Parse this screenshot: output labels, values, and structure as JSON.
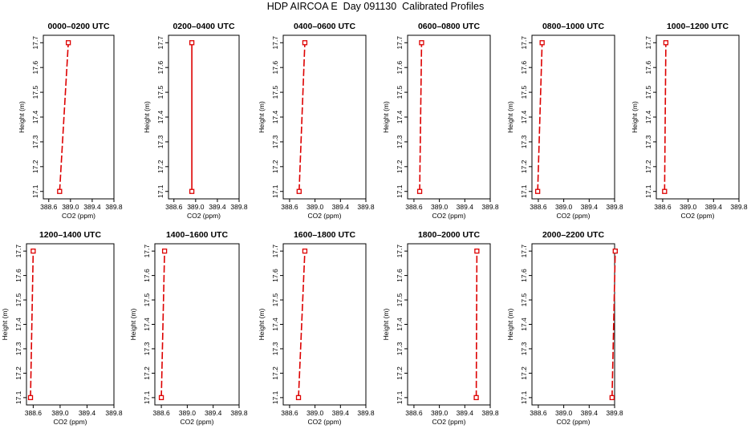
{
  "title": "HDP AIRCOA E  Day 091130  Calibrated Profiles",
  "colors": {
    "profile": "#dd0000",
    "axis": "#000000"
  },
  "chart_data": [
    {
      "type": "line",
      "title": "0000–0200 UTC",
      "xlabel": "CO2 (ppm)",
      "ylabel": "Height (m)",
      "xlim": [
        388.5,
        389.8
      ],
      "ylim": [
        17.07,
        17.73
      ],
      "xticks": [
        "388.6",
        "389.0",
        "389.4",
        "389.8"
      ],
      "yticks": [
        "17.1",
        "17.2",
        "17.3",
        "17.4",
        "17.5",
        "17.6",
        "17.7"
      ],
      "x": [
        388.8,
        388.96
      ],
      "y": [
        17.1,
        17.7
      ],
      "style": "dashed"
    },
    {
      "type": "line",
      "title": "0200–0400 UTC",
      "xlabel": "CO2 (ppm)",
      "ylabel": "Height (m)",
      "xlim": [
        388.5,
        389.8
      ],
      "ylim": [
        17.07,
        17.73
      ],
      "xticks": [
        "388.6",
        "389.0",
        "389.4",
        "389.8"
      ],
      "yticks": [
        "17.1",
        "17.2",
        "17.3",
        "17.4",
        "17.5",
        "17.6",
        "17.7"
      ],
      "x": [
        388.93,
        388.93
      ],
      "y": [
        17.1,
        17.7
      ],
      "style": "solid"
    },
    {
      "type": "line",
      "title": "0400–0600 UTC",
      "xlabel": "CO2 (ppm)",
      "ylabel": "Height (m)",
      "xlim": [
        388.5,
        389.8
      ],
      "ylim": [
        17.07,
        17.73
      ],
      "xticks": [
        "388.6",
        "389.0",
        "389.4",
        "389.8"
      ],
      "yticks": [
        "17.1",
        "17.2",
        "17.3",
        "17.4",
        "17.5",
        "17.6",
        "17.7"
      ],
      "x": [
        388.75,
        388.84
      ],
      "y": [
        17.1,
        17.7
      ],
      "style": "dashed"
    },
    {
      "type": "line",
      "title": "0600–0800 UTC",
      "xlabel": "CO2 (ppm)",
      "ylabel": "Height (m)",
      "xlim": [
        388.5,
        389.8
      ],
      "ylim": [
        17.07,
        17.73
      ],
      "xticks": [
        "388.6",
        "389.0",
        "389.4",
        "389.8"
      ],
      "yticks": [
        "17.1",
        "17.2",
        "17.3",
        "17.4",
        "17.5",
        "17.6",
        "17.7"
      ],
      "x": [
        388.69,
        388.72
      ],
      "y": [
        17.1,
        17.7
      ],
      "style": "dashed"
    },
    {
      "type": "line",
      "title": "0800–1000 UTC",
      "xlabel": "CO2 (ppm)",
      "ylabel": "Height (m)",
      "xlim": [
        388.5,
        389.8
      ],
      "ylim": [
        17.07,
        17.73
      ],
      "xticks": [
        "388.6",
        "389.0",
        "389.4",
        "389.8"
      ],
      "yticks": [
        "17.1",
        "17.2",
        "17.3",
        "17.4",
        "17.5",
        "17.6",
        "17.7"
      ],
      "x": [
        388.59,
        388.66
      ],
      "y": [
        17.1,
        17.7
      ],
      "style": "dashed"
    },
    {
      "type": "line",
      "title": "1000–1200 UTC",
      "xlabel": "CO2 (ppm)",
      "ylabel": "Height (m)",
      "xlim": [
        388.5,
        389.8
      ],
      "ylim": [
        17.07,
        17.73
      ],
      "xticks": [
        "388.6",
        "389.0",
        "389.4",
        "389.8"
      ],
      "yticks": [
        "17.1",
        "17.2",
        "17.3",
        "17.4",
        "17.5",
        "17.6",
        "17.7"
      ],
      "x": [
        388.63,
        388.65
      ],
      "y": [
        17.1,
        17.7
      ],
      "style": "dashed"
    },
    {
      "type": "line",
      "title": "1200–1400 UTC",
      "xlabel": "CO2 (ppm)",
      "ylabel": "Height (m)",
      "xlim": [
        388.5,
        389.8
      ],
      "ylim": [
        17.07,
        17.73
      ],
      "xticks": [
        "388.6",
        "389.0",
        "389.4",
        "389.8"
      ],
      "yticks": [
        "17.1",
        "17.2",
        "17.3",
        "17.4",
        "17.5",
        "17.6",
        "17.7"
      ],
      "x": [
        388.56,
        388.6
      ],
      "y": [
        17.1,
        17.7
      ],
      "style": "dashed"
    },
    {
      "type": "line",
      "title": "1400–1600 UTC",
      "xlabel": "CO2 (ppm)",
      "ylabel": "Height (m)",
      "xlim": [
        388.5,
        389.8
      ],
      "ylim": [
        17.07,
        17.73
      ],
      "xticks": [
        "388.6",
        "389.0",
        "389.4",
        "389.8"
      ],
      "yticks": [
        "17.1",
        "17.2",
        "17.3",
        "17.4",
        "17.5",
        "17.6",
        "17.7"
      ],
      "x": [
        388.6,
        388.65
      ],
      "y": [
        17.1,
        17.7
      ],
      "style": "dashed"
    },
    {
      "type": "line",
      "title": "1600–1800 UTC",
      "xlabel": "CO2 (ppm)",
      "ylabel": "Height (m)",
      "xlim": [
        388.5,
        389.8
      ],
      "ylim": [
        17.07,
        17.73
      ],
      "xticks": [
        "388.6",
        "389.0",
        "389.4",
        "389.8"
      ],
      "yticks": [
        "17.1",
        "17.2",
        "17.3",
        "17.4",
        "17.5",
        "17.6",
        "17.7"
      ],
      "x": [
        388.74,
        388.84
      ],
      "y": [
        17.1,
        17.7
      ],
      "style": "dashed"
    },
    {
      "type": "line",
      "title": "1800–2000 UTC",
      "xlabel": "CO2 (ppm)",
      "ylabel": "Height (m)",
      "xlim": [
        388.5,
        389.8
      ],
      "ylim": [
        17.07,
        17.73
      ],
      "xticks": [
        "388.6",
        "389.0",
        "389.4",
        "389.8"
      ],
      "yticks": [
        "17.1",
        "17.2",
        "17.3",
        "17.4",
        "17.5",
        "17.6",
        "17.7"
      ],
      "x": [
        389.58,
        389.59
      ],
      "y": [
        17.1,
        17.7
      ],
      "style": "dashed"
    },
    {
      "type": "line",
      "title": "2000–2200 UTC",
      "xlabel": "CO2 (ppm)",
      "ylabel": "Height (m)",
      "xlim": [
        388.5,
        389.8
      ],
      "ylim": [
        17.07,
        17.73
      ],
      "xticks": [
        "388.6",
        "389.0",
        "389.4",
        "389.8"
      ],
      "yticks": [
        "17.1",
        "17.2",
        "17.3",
        "17.4",
        "17.5",
        "17.6",
        "17.7"
      ],
      "x": [
        389.76,
        389.81
      ],
      "y": [
        17.1,
        17.7
      ],
      "style": "dashed"
    }
  ]
}
